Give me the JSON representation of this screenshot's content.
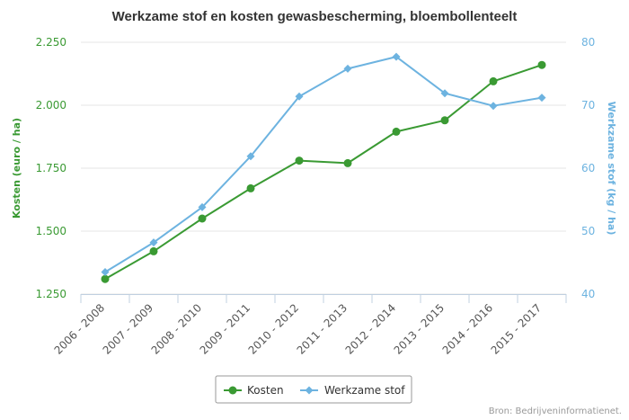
{
  "chart_data": {
    "type": "line",
    "title": "Werkzame stof en kosten gewasbescherming, bloembollenteelt",
    "categories": [
      "2006 - 2008",
      "2007 - 2009",
      "2008 - 2010",
      "2009 - 2011",
      "2010 - 2012",
      "2011 - 2013",
      "2012 - 2014",
      "2013 - 2015",
      "2014 - 2016",
      "2015 - 2017"
    ],
    "series": [
      {
        "name": "Kosten",
        "axis": "left",
        "color": "#3a9a33",
        "marker": "circle",
        "values": [
          1310,
          1420,
          1550,
          1670,
          1780,
          1770,
          1895,
          1940,
          2095,
          2160
        ]
      },
      {
        "name": "Werkzame stof",
        "axis": "right",
        "color": "#6db3e0",
        "marker": "diamond",
        "values": [
          43.5,
          48.2,
          53.8,
          61.9,
          71.4,
          75.8,
          77.7,
          71.9,
          69.9,
          71.2
        ]
      }
    ],
    "y_left": {
      "label": "Kosten (euro / ha)",
      "ticks": [
        "1.250",
        "1.500",
        "1.750",
        "2.000",
        "2.250"
      ],
      "tick_values": [
        1250,
        1500,
        1750,
        2000,
        2250
      ],
      "range": [
        1250,
        2250
      ]
    },
    "y_right": {
      "label": "Werkzame stof (kg / ha)",
      "ticks": [
        "40",
        "50",
        "60",
        "70",
        "80"
      ],
      "tick_values": [
        40,
        50,
        60,
        70,
        80
      ],
      "range": [
        40,
        80
      ]
    },
    "grid": true,
    "legend_position": "bottom-center",
    "source": "Bron: Bedrijveninformatienet."
  }
}
